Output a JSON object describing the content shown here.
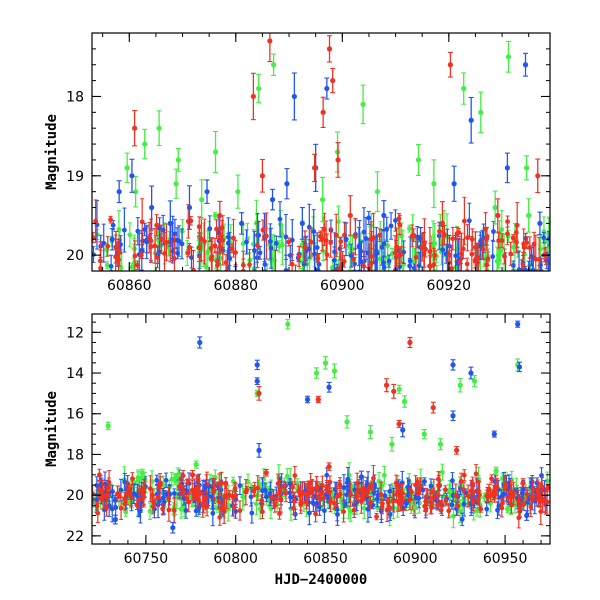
{
  "chart_data": [
    {
      "type": "scatter",
      "panel": "top",
      "title": "",
      "xlabel": "",
      "ylabel": "Magnitude",
      "xlim": [
        60853,
        60939
      ],
      "ylim": [
        20.2,
        17.2
      ],
      "y_inverted": true,
      "x_ticks": [
        60860,
        60880,
        60900,
        60920
      ],
      "x_minor_step": 5,
      "y_ticks": [
        18,
        19,
        20
      ],
      "y_minor_step": 0.2,
      "grid": false,
      "series": [
        {
          "name": "green",
          "color": "#44ee44",
          "points": [
            [
              60859.6,
              18.9
            ],
            [
              60861.2,
              19.2
            ],
            [
              60862.9,
              18.6
            ],
            [
              60865.6,
              18.4
            ],
            [
              60868.8,
              19.1
            ],
            [
              60869.2,
              18.8
            ],
            [
              60873.6,
              19.3
            ],
            [
              60876.2,
              18.7
            ],
            [
              60880.4,
              19.2
            ],
            [
              60884.3,
              17.9
            ],
            [
              60887.1,
              17.6
            ],
            [
              60896.3,
              19.3
            ],
            [
              60899.1,
              18.7
            ],
            [
              60903.9,
              18.1
            ],
            [
              60906.6,
              19.2
            ],
            [
              60914.3,
              18.8
            ],
            [
              60917.2,
              19.1
            ],
            [
              60922.8,
              17.9
            ],
            [
              60926.0,
              18.2
            ],
            [
              60928.7,
              19.4
            ],
            [
              60931.2,
              17.5
            ],
            [
              60934.6,
              18.9
            ],
            [
              60935.0,
              19.5
            ]
          ]
        },
        {
          "name": "blue",
          "color": "#2255ee",
          "points": [
            [
              60856.8,
              19.8
            ],
            [
              60858.1,
              19.2
            ],
            [
              60860.5,
              19.0
            ],
            [
              60864.2,
              19.4
            ],
            [
              60867.7,
              19.6
            ],
            [
              60871.3,
              19.4
            ],
            [
              60874.6,
              19.2
            ],
            [
              60881.1,
              19.6
            ],
            [
              60886.9,
              19.3
            ],
            [
              60889.6,
              19.1
            ],
            [
              60891.0,
              18.0
            ],
            [
              60892.5,
              19.6
            ],
            [
              60895.0,
              18.9
            ],
            [
              60897.1,
              17.9
            ],
            [
              60900.7,
              19.8
            ],
            [
              60907.8,
              19.5
            ],
            [
              60914.7,
              19.9
            ],
            [
              60921.0,
              19.1
            ],
            [
              60924.2,
              18.3
            ],
            [
              60931.0,
              18.9
            ],
            [
              60934.4,
              17.6
            ],
            [
              60937.1,
              19.6
            ]
          ]
        },
        {
          "name": "red",
          "color": "#ee3322",
          "points": [
            [
              60857.5,
              19.9
            ],
            [
              60861.0,
              18.4
            ],
            [
              60866.0,
              19.8
            ],
            [
              60873.2,
              19.9
            ],
            [
              60877.0,
              19.5
            ],
            [
              60883.3,
              18.0
            ],
            [
              60885.0,
              19.0
            ],
            [
              60886.4,
              17.3
            ],
            [
              60893.0,
              19.9
            ],
            [
              60894.8,
              18.9
            ],
            [
              60896.4,
              18.2
            ],
            [
              60897.6,
              17.4
            ],
            [
              60898.2,
              17.8
            ],
            [
              60899.2,
              18.8
            ],
            [
              60901.5,
              19.5
            ],
            [
              60905.4,
              19.8
            ],
            [
              60910.2,
              19.9
            ],
            [
              60915.0,
              19.9
            ],
            [
              60918.8,
              19.6
            ],
            [
              60920.3,
              17.6
            ],
            [
              60925.0,
              19.9
            ],
            [
              60929.2,
              19.5
            ],
            [
              60936.7,
              19.0
            ]
          ]
        }
      ]
    },
    {
      "type": "scatter",
      "panel": "bottom",
      "title": "",
      "xlabel": "HJD−2400000",
      "ylabel": "Magnitude",
      "xlim": [
        60720,
        60975
      ],
      "ylim": [
        22.4,
        11.1
      ],
      "y_inverted": true,
      "x_ticks": [
        60750,
        60800,
        60850,
        60900,
        60950
      ],
      "x_minor_step": 10,
      "y_ticks": [
        12,
        14,
        16,
        18,
        20,
        22
      ],
      "y_minor_step": 0.5,
      "grid": false,
      "series": [
        {
          "name": "green",
          "color": "#44ee44",
          "points": [
            [
              60729,
              16.6
            ],
            [
              60748,
              18.9
            ],
            [
              60768,
              19.0
            ],
            [
              60778,
              18.5
            ],
            [
              60812,
              15.0
            ],
            [
              60829,
              11.6
            ],
            [
              60845,
              14.0
            ],
            [
              60850,
              13.5
            ],
            [
              60855,
              13.9
            ],
            [
              60862,
              16.4
            ],
            [
              60875,
              16.9
            ],
            [
              60887,
              17.5
            ],
            [
              60891,
              14.8
            ],
            [
              60894,
              15.4
            ],
            [
              60900,
              20.6
            ],
            [
              60905,
              17.0
            ],
            [
              60914,
              17.5
            ],
            [
              60925,
              14.6
            ],
            [
              60933,
              14.4
            ],
            [
              60945,
              18.8
            ],
            [
              60957,
              13.6
            ]
          ]
        },
        {
          "name": "blue",
          "color": "#2255ee",
          "points": [
            [
              60733,
              21.2
            ],
            [
              60765,
              21.6
            ],
            [
              60780,
              12.5
            ],
            [
              60783,
              19.6
            ],
            [
              60812,
              13.6
            ],
            [
              60812,
              14.4
            ],
            [
              60813,
              17.8
            ],
            [
              60840,
              15.3
            ],
            [
              60852,
              14.7
            ],
            [
              60870,
              19.1
            ],
            [
              60893,
              16.8
            ],
            [
              60895,
              20.4
            ],
            [
              60921,
              13.6
            ],
            [
              60921,
              16.1
            ],
            [
              60931,
              14.0
            ],
            [
              60944,
              17.0
            ],
            [
              60957,
              11.6
            ],
            [
              60958,
              13.7
            ],
            [
              60962,
              21.0
            ]
          ]
        },
        {
          "name": "red",
          "color": "#ee3322",
          "points": [
            [
              60735,
              20.0
            ],
            [
              60758,
              19.4
            ],
            [
              60776,
              19.0
            ],
            [
              60813,
              15.0
            ],
            [
              60817,
              18.9
            ],
            [
              60846,
              15.3
            ],
            [
              60852,
              18.6
            ],
            [
              60884,
              14.6
            ],
            [
              60888,
              14.9
            ],
            [
              60891,
              16.5
            ],
            [
              60897,
              12.5
            ],
            [
              60910,
              15.7
            ],
            [
              60923,
              17.8
            ],
            [
              60941,
              19.7
            ],
            [
              60960,
              19.4
            ]
          ]
        }
      ]
    }
  ]
}
